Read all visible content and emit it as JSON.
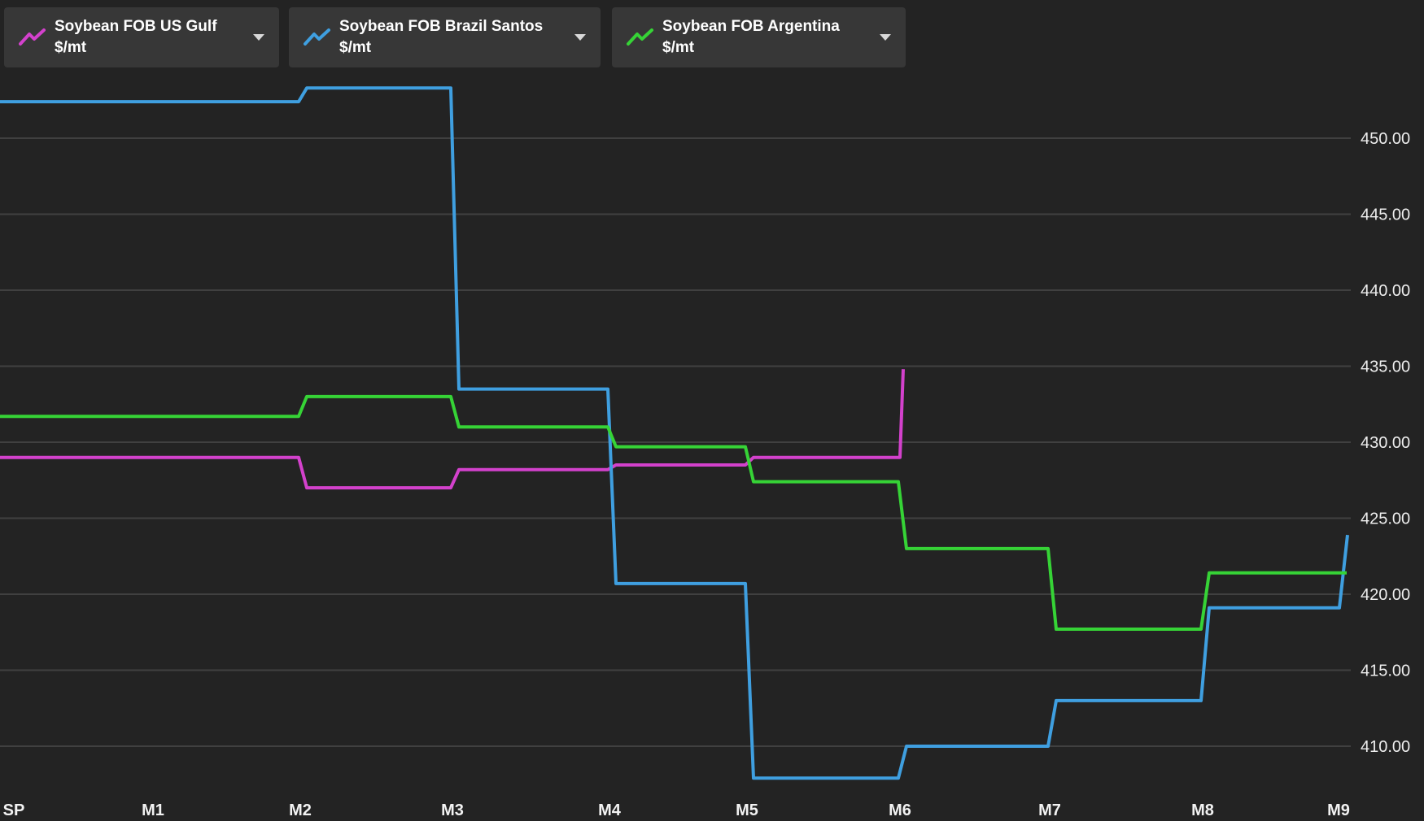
{
  "legend": {
    "buttons": [
      {
        "label": "Soybean FOB US Gulf $/mt",
        "color": "#d341cc"
      },
      {
        "label": "Soybean FOB Brazil Santos $/mt",
        "color": "#3f9fe0"
      },
      {
        "label": "Soybean FOB Argentina $/mt",
        "color": "#36d336"
      }
    ]
  },
  "chart_data": {
    "type": "line",
    "subtype": "step-forward-curve",
    "title": "",
    "xlabel": "",
    "ylabel": "",
    "grid": true,
    "legend_position": "top-left",
    "y_axis_side": "right",
    "background_color": "#232323",
    "gridline_color": "#404040",
    "x_ticks": [
      "SP",
      "M1",
      "M2",
      "M3",
      "M4",
      "M5",
      "M6",
      "M7",
      "M8",
      "M9"
    ],
    "y_ticks": [
      "450.00",
      "445.00",
      "440.00",
      "435.00",
      "430.00",
      "425.00",
      "420.00",
      "415.00",
      "410.00"
    ],
    "y_range_visible": [
      405.1,
      459.1
    ],
    "series": [
      {
        "name": "Soybean FOB US Gulf $/mt",
        "color": "#d341cc",
        "segments": [
          {
            "from": "start",
            "to": "M2",
            "value": 429.0
          },
          {
            "from": "M2",
            "to": "M3",
            "value": 427.0
          },
          {
            "from": "M3",
            "to": "M4",
            "value": 428.2
          },
          {
            "from": "M4",
            "to": "M5",
            "value": 428.5
          },
          {
            "from": "M5",
            "to": "M6",
            "value": 429.0
          }
        ],
        "end_spike": {
          "value": 434.8
        }
      },
      {
        "name": "Soybean FOB Brazil Santos $/mt",
        "color": "#3f9fe0",
        "segments": [
          {
            "from": "start",
            "to": "M2",
            "value": 452.4
          },
          {
            "from": "M2",
            "to": "M3",
            "value": 453.3
          },
          {
            "from": "M3",
            "to": "M4",
            "value": 433.5
          },
          {
            "from": "M4",
            "to": "M5",
            "value": 420.7
          },
          {
            "from": "M5",
            "to": "M6",
            "value": 407.9
          },
          {
            "from": "M6",
            "to": "M7",
            "value": 410.0
          },
          {
            "from": "M7",
            "to": "M8",
            "value": 413.0
          },
          {
            "from": "M8",
            "to": "end",
            "value": 419.1
          }
        ],
        "end_spike": {
          "value": 423.9
        }
      },
      {
        "name": "Soybean FOB Argentina $/mt",
        "color": "#36d336",
        "segments": [
          {
            "from": "start",
            "to": "M2",
            "value": 431.7
          },
          {
            "from": "M2",
            "to": "M3",
            "value": 433.0
          },
          {
            "from": "M3",
            "to": "M4",
            "value": 431.0
          },
          {
            "from": "M4",
            "to": "M5",
            "value": 429.7
          },
          {
            "from": "M5",
            "to": "M6",
            "value": 427.4
          },
          {
            "from": "M6",
            "to": "M7",
            "value": 423.0
          },
          {
            "from": "M7",
            "to": "M8",
            "value": 417.7
          },
          {
            "from": "M8",
            "to": "end",
            "value": 421.4
          }
        ]
      }
    ]
  }
}
